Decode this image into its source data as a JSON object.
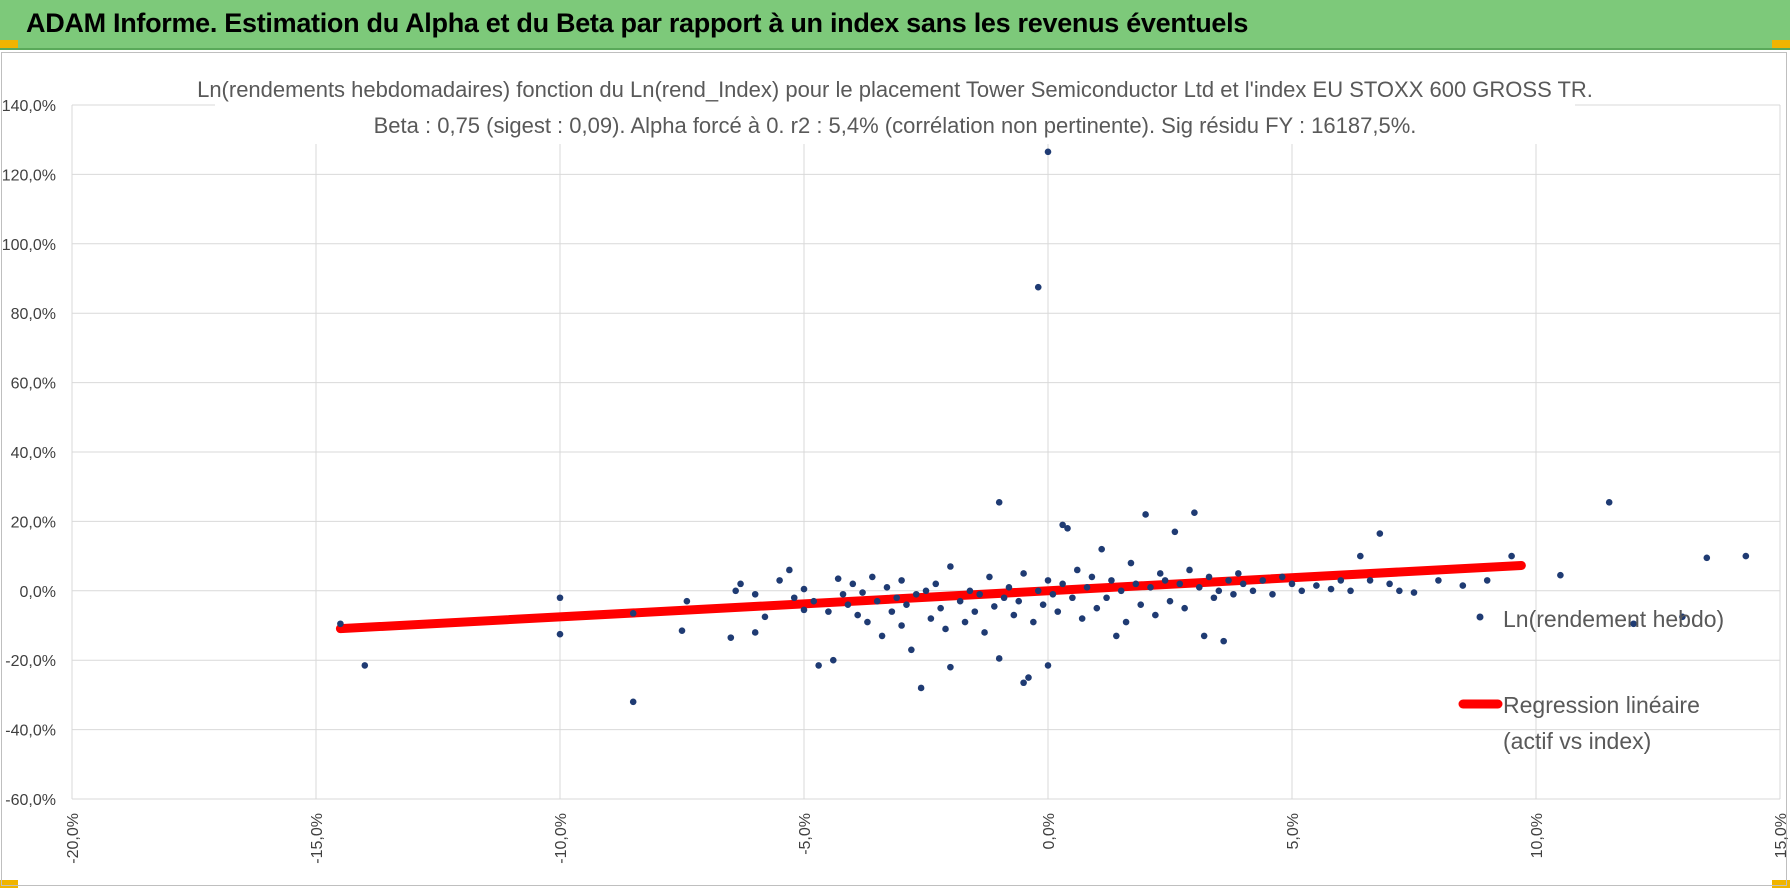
{
  "header": {
    "title": "ADAM Informe. Estimation du Alpha et du Beta par rapport à un index sans les revenus éventuels"
  },
  "colors": {
    "header_bg": "#7dc97a",
    "accent": "#f0b400",
    "points": "#1f3b73",
    "regression": "#ff0000",
    "grid": "#d9d9d9"
  },
  "chart_data": {
    "type": "scatter",
    "title": "Ln(rendements hebdomadaires) fonction du Ln(rend_Index) pour le placement Tower Semiconductor Ltd et l'index EU STOXX 600 GROSS TR.",
    "subtitle": "Beta : 0,75 (sigest : 0,09).  Alpha forcé à 0. r2 : 5,4% (corrélation non pertinente). Sig résidu FY : 16187,5%.",
    "xlim": [
      -0.2,
      0.15
    ],
    "ylim": [
      -0.6,
      1.4
    ],
    "x_ticks": [
      "-20,0%",
      "-15,0%",
      "-10,0%",
      "-5,0%",
      "0,0%",
      "5,0%",
      "10,0%",
      "15,0%"
    ],
    "y_ticks": [
      "140,0%",
      "120,0%",
      "100,0%",
      "80,0%",
      "60,0%",
      "40,0%",
      "20,0%",
      "0,0%",
      "-20,0%",
      "-40,0%",
      "-60,0%"
    ],
    "grid": true,
    "legend_position": "right",
    "series": [
      {
        "name": "Ln(rendement hebdo)",
        "kind": "points",
        "points": [
          [
            -0.145,
            -0.095
          ],
          [
            -0.14,
            -0.215
          ],
          [
            -0.1,
            -0.125
          ],
          [
            -0.1,
            -0.02
          ],
          [
            -0.085,
            -0.32
          ],
          [
            -0.085,
            -0.065
          ],
          [
            -0.075,
            -0.115
          ],
          [
            -0.074,
            -0.03
          ],
          [
            -0.065,
            -0.135
          ],
          [
            -0.064,
            0.0
          ],
          [
            -0.063,
            0.02
          ],
          [
            -0.06,
            -0.12
          ],
          [
            -0.06,
            -0.01
          ],
          [
            -0.058,
            -0.075
          ],
          [
            -0.055,
            0.03
          ],
          [
            -0.053,
            0.06
          ],
          [
            -0.052,
            -0.02
          ],
          [
            -0.05,
            -0.055
          ],
          [
            -0.05,
            0.005
          ],
          [
            -0.048,
            -0.03
          ],
          [
            -0.047,
            -0.215
          ],
          [
            -0.045,
            -0.06
          ],
          [
            -0.044,
            -0.2
          ],
          [
            -0.043,
            0.035
          ],
          [
            -0.042,
            -0.01
          ],
          [
            -0.041,
            -0.04
          ],
          [
            -0.04,
            0.02
          ],
          [
            -0.039,
            -0.07
          ],
          [
            -0.038,
            -0.005
          ],
          [
            -0.037,
            -0.09
          ],
          [
            -0.036,
            0.04
          ],
          [
            -0.035,
            -0.03
          ],
          [
            -0.034,
            -0.13
          ],
          [
            -0.033,
            0.01
          ],
          [
            -0.032,
            -0.06
          ],
          [
            -0.031,
            -0.02
          ],
          [
            -0.03,
            -0.1
          ],
          [
            -0.03,
            0.03
          ],
          [
            -0.029,
            -0.04
          ],
          [
            -0.028,
            -0.17
          ],
          [
            -0.027,
            -0.01
          ],
          [
            -0.026,
            -0.28
          ],
          [
            -0.025,
            0.0
          ],
          [
            -0.024,
            -0.08
          ],
          [
            -0.023,
            0.02
          ],
          [
            -0.022,
            -0.05
          ],
          [
            -0.021,
            -0.11
          ],
          [
            -0.02,
            -0.22
          ],
          [
            -0.02,
            0.07
          ],
          [
            -0.018,
            -0.03
          ],
          [
            -0.017,
            -0.09
          ],
          [
            -0.016,
            0.0
          ],
          [
            -0.015,
            -0.06
          ],
          [
            -0.014,
            -0.01
          ],
          [
            -0.013,
            -0.12
          ],
          [
            -0.012,
            0.04
          ],
          [
            -0.011,
            -0.045
          ],
          [
            -0.01,
            -0.195
          ],
          [
            -0.01,
            0.255
          ],
          [
            -0.009,
            -0.02
          ],
          [
            -0.008,
            0.01
          ],
          [
            -0.007,
            -0.07
          ],
          [
            -0.006,
            -0.03
          ],
          [
            -0.005,
            0.05
          ],
          [
            -0.005,
            -0.265
          ],
          [
            -0.004,
            -0.25
          ],
          [
            -0.003,
            -0.09
          ],
          [
            -0.002,
            0.875
          ],
          [
            -0.002,
            0.0
          ],
          [
            -0.001,
            -0.04
          ],
          [
            0.0,
            1.265
          ],
          [
            0.0,
            0.03
          ],
          [
            0.0,
            -0.215
          ],
          [
            0.001,
            -0.01
          ],
          [
            0.002,
            -0.06
          ],
          [
            0.003,
            0.19
          ],
          [
            0.003,
            0.02
          ],
          [
            0.004,
            0.18
          ],
          [
            0.005,
            -0.02
          ],
          [
            0.006,
            0.06
          ],
          [
            0.007,
            -0.08
          ],
          [
            0.008,
            0.01
          ],
          [
            0.009,
            0.04
          ],
          [
            0.01,
            -0.05
          ],
          [
            0.011,
            0.12
          ],
          [
            0.012,
            -0.02
          ],
          [
            0.013,
            0.03
          ],
          [
            0.014,
            -0.13
          ],
          [
            0.015,
            0.0
          ],
          [
            0.016,
            -0.09
          ],
          [
            0.017,
            0.08
          ],
          [
            0.018,
            0.02
          ],
          [
            0.019,
            -0.04
          ],
          [
            0.02,
            0.22
          ],
          [
            0.021,
            0.01
          ],
          [
            0.022,
            -0.07
          ],
          [
            0.023,
            0.05
          ],
          [
            0.024,
            0.03
          ],
          [
            0.025,
            -0.03
          ],
          [
            0.026,
            0.17
          ],
          [
            0.027,
            0.02
          ],
          [
            0.028,
            -0.05
          ],
          [
            0.029,
            0.06
          ],
          [
            0.03,
            0.225
          ],
          [
            0.031,
            0.01
          ],
          [
            0.032,
            -0.13
          ],
          [
            0.033,
            0.04
          ],
          [
            0.034,
            -0.02
          ],
          [
            0.035,
            0.0
          ],
          [
            0.036,
            -0.145
          ],
          [
            0.037,
            0.03
          ],
          [
            0.038,
            -0.01
          ],
          [
            0.039,
            0.05
          ],
          [
            0.04,
            0.02
          ],
          [
            0.042,
            0.0
          ],
          [
            0.044,
            0.03
          ],
          [
            0.046,
            -0.01
          ],
          [
            0.048,
            0.04
          ],
          [
            0.05,
            0.02
          ],
          [
            0.052,
            0.0
          ],
          [
            0.055,
            0.015
          ],
          [
            0.058,
            0.005
          ],
          [
            0.06,
            0.03
          ],
          [
            0.062,
            0.0
          ],
          [
            0.064,
            0.1
          ],
          [
            0.066,
            0.03
          ],
          [
            0.068,
            0.165
          ],
          [
            0.07,
            0.02
          ],
          [
            0.072,
            0.0
          ],
          [
            0.075,
            -0.005
          ],
          [
            0.08,
            0.03
          ],
          [
            0.085,
            0.015
          ],
          [
            0.09,
            0.03
          ],
          [
            0.095,
            0.1
          ],
          [
            0.105,
            0.045
          ],
          [
            0.115,
            0.255
          ],
          [
            0.12,
            -0.095
          ],
          [
            0.135,
            0.095
          ],
          [
            0.13,
            -0.075
          ],
          [
            0.143,
            0.1
          ]
        ]
      },
      {
        "name": "Regression linéaire (actif vs index)",
        "kind": "line",
        "points": [
          [
            -0.145,
            -0.109
          ],
          [
            0.097,
            0.073
          ]
        ]
      }
    ],
    "legend": {
      "points_label": "Ln(rendement hebdo)",
      "line_label_1": "Regression linéaire",
      "line_label_2": "(actif vs index)"
    }
  }
}
